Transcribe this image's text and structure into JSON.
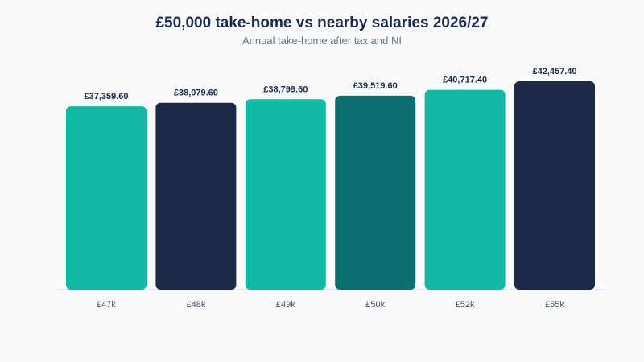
{
  "chart_data": {
    "type": "bar",
    "title": "£50,000 take-home vs nearby salaries 2026/27",
    "subtitle": "Annual take-home after tax and NI",
    "xlabel": "",
    "ylabel": "",
    "categories": [
      "£47k",
      "£48k",
      "£49k",
      "£50k",
      "£52k",
      "£55k"
    ],
    "values": [
      37359.6,
      38079.6,
      38799.6,
      39519.6,
      40717.4,
      42457.4
    ],
    "value_labels": [
      "£37,359.60",
      "£38,079.60",
      "£38,799.60",
      "£39,519.60",
      "£40,717.40",
      "£42,457.40"
    ],
    "bar_colors": [
      "#14b8a6",
      "#1c2a4a",
      "#14b8a6",
      "#0d7070",
      "#14b8a6",
      "#1c2a4a"
    ],
    "ylim": [
      0,
      42457.4
    ],
    "grid": false,
    "legend": "none"
  }
}
